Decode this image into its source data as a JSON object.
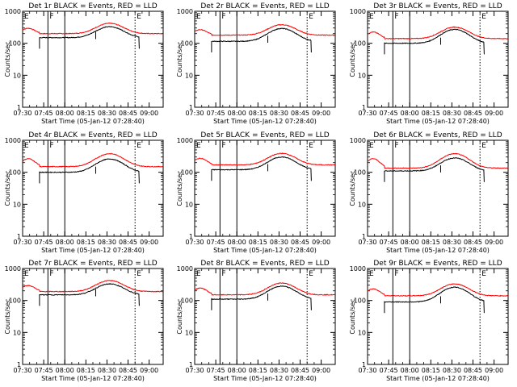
{
  "axis_common": {
    "ylabel": "Counts/sec",
    "xlabel": "Start Time (05-Jan-12 07:28:40)",
    "xticks": [
      "07:30",
      "07:45",
      "08:00",
      "08:15",
      "08:30",
      "08:45",
      "09:00"
    ],
    "yticks": [
      "1",
      "10",
      "100",
      "1000"
    ],
    "marker_labels": [
      "E",
      "F",
      "E"
    ]
  },
  "colors": {
    "events": "#000000",
    "lld": "#ff0000"
  },
  "chart_data": [
    {
      "type": "line",
      "title": "Det 1r BLACK = Events, RED = LLD",
      "xlim_min": [
        0,
        100
      ],
      "ylim": [
        1,
        1000
      ],
      "yscale": "log",
      "markers_min": [
        0,
        18,
        30,
        80
      ],
      "series": [
        {
          "name": "Events",
          "level": 150,
          "hump_peak": 330,
          "hump_center": 62
        },
        {
          "name": "LLD",
          "level": 200,
          "hump_peak": 420,
          "hump_center": 62
        }
      ]
    },
    {
      "type": "line",
      "title": "Det 2r BLACK = Events, RED = LLD",
      "xlim_min": [
        0,
        100
      ],
      "ylim": [
        1,
        1000
      ],
      "yscale": "log",
      "markers_min": [
        0,
        18,
        30,
        80
      ],
      "series": [
        {
          "name": "Events",
          "level": 115,
          "hump_peak": 290,
          "hump_center": 62
        },
        {
          "name": "LLD",
          "level": 180,
          "hump_peak": 380,
          "hump_center": 62
        }
      ]
    },
    {
      "type": "line",
      "title": "Det 3r BLACK = Events, RED = LLD",
      "xlim_min": [
        0,
        100
      ],
      "ylim": [
        1,
        1000
      ],
      "yscale": "log",
      "markers_min": [
        0,
        18,
        30,
        80
      ],
      "series": [
        {
          "name": "Events",
          "level": 100,
          "hump_peak": 270,
          "hump_center": 62
        },
        {
          "name": "LLD",
          "level": 140,
          "hump_peak": 320,
          "hump_center": 62
        }
      ]
    },
    {
      "type": "line",
      "title": "Det 4r BLACK = Events, RED = LLD",
      "xlim_min": [
        0,
        100
      ],
      "ylim": [
        1,
        1000
      ],
      "yscale": "log",
      "markers_min": [
        0,
        18,
        30,
        80
      ],
      "series": [
        {
          "name": "Events",
          "level": 100,
          "hump_peak": 260,
          "hump_center": 62
        },
        {
          "name": "LLD",
          "level": 150,
          "hump_peak": 380,
          "hump_center": 62
        }
      ]
    },
    {
      "type": "line",
      "title": "Det 5r BLACK = Events, RED = LLD",
      "xlim_min": [
        0,
        100
      ],
      "ylim": [
        1,
        1000
      ],
      "yscale": "log",
      "markers_min": [
        0,
        18,
        30,
        80
      ],
      "series": [
        {
          "name": "Events",
          "level": 120,
          "hump_peak": 300,
          "hump_center": 62
        },
        {
          "name": "LLD",
          "level": 170,
          "hump_peak": 390,
          "hump_center": 62
        }
      ]
    },
    {
      "type": "line",
      "title": "Det 6r BLACK = Events, RED = LLD",
      "xlim_min": [
        0,
        100
      ],
      "ylim": [
        1,
        1000
      ],
      "yscale": "log",
      "markers_min": [
        0,
        18,
        30,
        80
      ],
      "series": [
        {
          "name": "Events",
          "level": 110,
          "hump_peak": 280,
          "hump_center": 62
        },
        {
          "name": "LLD",
          "level": 135,
          "hump_peak": 380,
          "hump_center": 62
        }
      ]
    },
    {
      "type": "line",
      "title": "Det 7r BLACK = Events, RED = LLD",
      "xlim_min": [
        0,
        100
      ],
      "ylim": [
        1,
        1000
      ],
      "yscale": "log",
      "markers_min": [
        0,
        18,
        30,
        80
      ],
      "series": [
        {
          "name": "Events",
          "level": 150,
          "hump_peak": 330,
          "hump_center": 62
        },
        {
          "name": "LLD",
          "level": 190,
          "hump_peak": 420,
          "hump_center": 62
        }
      ]
    },
    {
      "type": "line",
      "title": "Det 8r BLACK = Events, RED = LLD",
      "xlim_min": [
        0,
        100
      ],
      "ylim": [
        1,
        1000
      ],
      "yscale": "log",
      "markers_min": [
        0,
        18,
        30,
        80
      ],
      "series": [
        {
          "name": "Events",
          "level": 110,
          "hump_peak": 280,
          "hump_center": 62
        },
        {
          "name": "LLD",
          "level": 150,
          "hump_peak": 350,
          "hump_center": 62
        }
      ]
    },
    {
      "type": "line",
      "title": "Det 9r BLACK = Events, RED = LLD",
      "xlim_min": [
        0,
        100
      ],
      "ylim": [
        1,
        1000
      ],
      "yscale": "log",
      "markers_min": [
        0,
        18,
        30,
        80
      ],
      "series": [
        {
          "name": "Events",
          "level": 90,
          "hump_peak": 260,
          "hump_center": 62
        },
        {
          "name": "LLD",
          "level": 140,
          "hump_peak": 330,
          "hump_center": 62
        }
      ]
    }
  ]
}
